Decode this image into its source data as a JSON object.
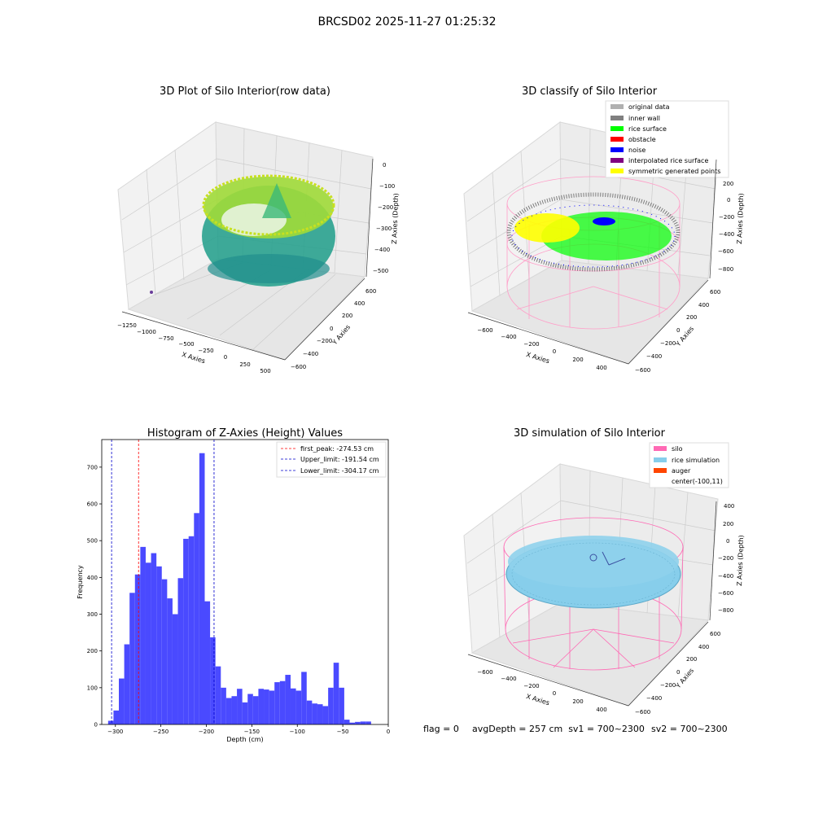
{
  "suptitle": "BRCSD02 2025-11-27 01:25:32",
  "chart_data": [
    {
      "type": "scatter3d",
      "title": "3D Plot of Silo Interior(row data)",
      "xlabel": "X Axies",
      "ylabel": "Y Axies",
      "zlabel": "Z Axies (Depth)",
      "xticks": [
        "−1250",
        "−1000",
        "−750",
        "−500",
        "−250",
        "0",
        "250",
        "500"
      ],
      "yticks": [
        "−600",
        "−400",
        "−200",
        "0",
        "200",
        "400",
        "600"
      ],
      "zticks": [
        "0",
        "−100",
        "−200",
        "−300",
        "−400",
        "−500"
      ],
      "xlim": [
        -1300,
        550
      ],
      "ylim": [
        -650,
        650
      ],
      "zlim": [
        -550,
        0
      ],
      "colormap": "viridis"
    },
    {
      "type": "scatter3d",
      "title": "3D classify of Silo Interior",
      "xlabel": "X Axies",
      "ylabel": "Y Axies",
      "zlabel": "Z Axies (Depth)",
      "xticks": [
        "−600",
        "−400",
        "−200",
        "0",
        "200",
        "400"
      ],
      "yticks": [
        "−600",
        "−400",
        "−200",
        "0",
        "200",
        "400",
        "600"
      ],
      "zticks": [
        "200",
        "0",
        "−200",
        "−400",
        "−600",
        "−800"
      ],
      "legend_position": "top-right",
      "legend": [
        {
          "label": "original data",
          "color": "#b0b0b0"
        },
        {
          "label": "inner wall",
          "color": "#808080"
        },
        {
          "label": "rice surface",
          "color": "#00ff00"
        },
        {
          "label": "obstacle",
          "color": "#ff0000"
        },
        {
          "label": "noise",
          "color": "#0000ff"
        },
        {
          "label": "interpolated rice surface",
          "color": "#800080"
        },
        {
          "label": "symmetric generated points",
          "color": "#ffff00"
        }
      ]
    },
    {
      "type": "bar",
      "title": "Histogram of Z-Axies (Height) Values",
      "xlabel": "Depth (cm)",
      "ylabel": "Frequency",
      "xlim": [
        -315,
        0
      ],
      "ylim": [
        0,
        775
      ],
      "xticks": [
        -300,
        -250,
        -200,
        -150,
        -100,
        -50,
        0
      ],
      "xtick_labels": [
        "−300",
        "−250",
        "−200",
        "−150",
        "−100",
        "−50",
        "0"
      ],
      "yticks": [
        0,
        100,
        200,
        300,
        400,
        500,
        600,
        700
      ],
      "bar_color": "#4a4aff",
      "bin_start": -308,
      "bin_width": 5.9,
      "values": [
        10,
        38,
        125,
        218,
        358,
        408,
        483,
        440,
        466,
        430,
        395,
        343,
        300,
        398,
        505,
        512,
        575,
        738,
        335,
        237,
        158,
        100,
        72,
        77,
        97,
        60,
        83,
        77,
        97,
        95,
        92,
        115,
        118,
        135,
        98,
        92,
        143,
        65,
        57,
        55,
        50,
        100,
        168,
        100,
        13,
        5,
        7,
        8,
        8
      ],
      "vlines": [
        {
          "label": "first_peak: -274.53 cm",
          "x": -274.53,
          "color": "#ff0000"
        },
        {
          "label": "Upper_limit: -191.54 cm",
          "x": -191.54,
          "color": "#0000cc"
        },
        {
          "label": "Lower_limit: -304.17 cm",
          "x": -304.17,
          "color": "#0000cc"
        }
      ],
      "legend_position": "top-right"
    },
    {
      "type": "surface3d",
      "title": "3D simulation of Silo Interior",
      "xlabel": "X Axies",
      "ylabel": "Y Axies",
      "zlabel": "Z Axies (Depth)",
      "xticks": [
        "−600",
        "−400",
        "−200",
        "0",
        "200",
        "400"
      ],
      "yticks": [
        "−600",
        "−400",
        "−200",
        "0",
        "200",
        "400",
        "600"
      ],
      "zticks": [
        "400",
        "200",
        "0",
        "−200",
        "−400",
        "−600",
        "−800"
      ],
      "legend_position": "top-right",
      "legend": [
        {
          "label": "silo",
          "color": "#ff69b4"
        },
        {
          "label": "rice simulation",
          "color": "#87ceeb"
        },
        {
          "label": "auger",
          "color": "#ff4500"
        },
        {
          "label": "center(-100,11)",
          "color": ""
        }
      ]
    }
  ],
  "status": {
    "flag": "flag = 0",
    "avg": "avgDepth = 257 cm  sv1 = 700~2300",
    "sv2": "sv2 = 700~2300"
  }
}
